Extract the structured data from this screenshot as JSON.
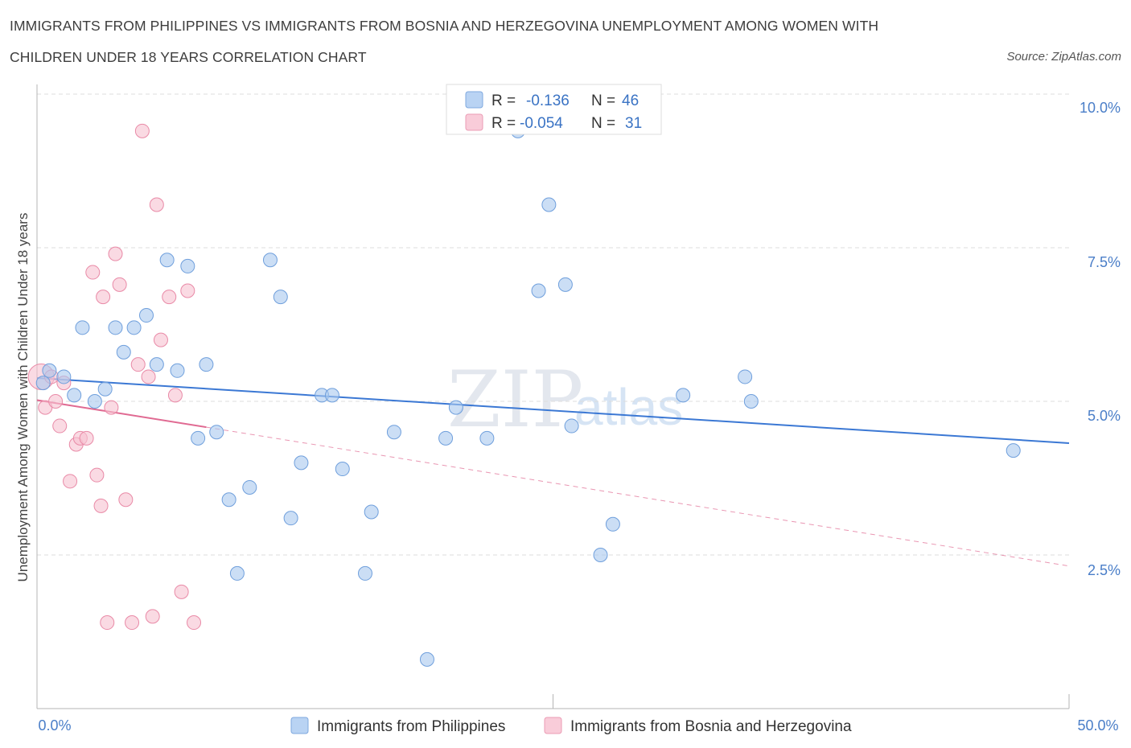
{
  "title_line1": "IMMIGRANTS FROM PHILIPPINES VS IMMIGRANTS FROM BOSNIA AND HERZEGOVINA UNEMPLOYMENT AMONG WOMEN WITH",
  "title_line2": "CHILDREN UNDER 18 YEARS CORRELATION CHART",
  "source": "Source: ZipAtlas.com",
  "watermark_zip": "ZIP",
  "watermark_atlas": "atlas",
  "chart_data": {
    "type": "scatter",
    "title": "IMMIGRANTS FROM PHILIPPINES VS IMMIGRANTS FROM BOSNIA AND HERZEGOVINA UNEMPLOYMENT AMONG WOMEN WITH CHILDREN UNDER 18 YEARS CORRELATION CHART",
    "xlabel": "",
    "ylabel": "Unemployment Among Women with Children Under 18 years",
    "xlim": [
      0,
      50
    ],
    "ylim": [
      0,
      10
    ],
    "x_tick_labels": [
      "0.0%",
      "50.0%"
    ],
    "y_ticks": [
      2.5,
      5.0,
      7.5,
      10.0
    ],
    "y_tick_labels": [
      "2.5%",
      "5.0%",
      "7.5%",
      "10.0%"
    ],
    "grid": true,
    "legend_position": "top-center",
    "series": [
      {
        "name": "Immigrants from Philippines",
        "color": "#a9c8ef",
        "edge": "#6f9fdc",
        "R": "-0.136",
        "N": "46",
        "trend": {
          "x": [
            0,
            50
          ],
          "y": [
            5.38,
            4.32
          ],
          "color": "#3b78d4"
        },
        "points": [
          [
            0.3,
            5.3
          ],
          [
            0.6,
            5.5
          ],
          [
            1.3,
            5.4
          ],
          [
            1.8,
            5.1
          ],
          [
            2.2,
            6.2
          ],
          [
            2.8,
            5.0
          ],
          [
            3.3,
            5.2
          ],
          [
            3.8,
            6.2
          ],
          [
            4.2,
            5.8
          ],
          [
            4.7,
            6.2
          ],
          [
            5.3,
            6.4
          ],
          [
            5.8,
            5.6
          ],
          [
            6.3,
            7.3
          ],
          [
            6.8,
            5.5
          ],
          [
            7.3,
            7.2
          ],
          [
            7.8,
            4.4
          ],
          [
            8.2,
            5.6
          ],
          [
            8.7,
            4.5
          ],
          [
            9.3,
            3.4
          ],
          [
            9.7,
            2.2
          ],
          [
            10.3,
            3.6
          ],
          [
            11.3,
            7.3
          ],
          [
            11.8,
            6.7
          ],
          [
            12.3,
            3.1
          ],
          [
            12.8,
            4.0
          ],
          [
            13.8,
            5.1
          ],
          [
            14.3,
            5.1
          ],
          [
            14.8,
            3.9
          ],
          [
            15.9,
            2.2
          ],
          [
            16.2,
            3.2
          ],
          [
            17.3,
            4.5
          ],
          [
            18.9,
            0.8
          ],
          [
            19.8,
            4.4
          ],
          [
            20.3,
            4.9
          ],
          [
            21.8,
            4.4
          ],
          [
            23.3,
            9.4
          ],
          [
            24.3,
            6.8
          ],
          [
            24.8,
            8.2
          ],
          [
            25.6,
            6.9
          ],
          [
            25.9,
            4.6
          ],
          [
            27.3,
            2.5
          ],
          [
            27.9,
            3.0
          ],
          [
            31.3,
            5.1
          ],
          [
            34.3,
            5.4
          ],
          [
            34.6,
            5.0
          ],
          [
            47.3,
            4.2
          ]
        ]
      },
      {
        "name": "Immigrants from Bosnia and Herzegovina",
        "color": "#f7c1d0",
        "edge": "#e98aa7",
        "R": "-0.054",
        "N": "31",
        "trend": {
          "x": [
            0,
            8.2
          ],
          "y": [
            5.02,
            4.58
          ],
          "color": "#e06a92"
        },
        "trend_extension": {
          "x": [
            8.2,
            50
          ],
          "y": [
            4.58,
            2.32
          ]
        },
        "points": [
          [
            0.2,
            5.4
          ],
          [
            0.4,
            4.9
          ],
          [
            0.7,
            5.4
          ],
          [
            0.9,
            5.0
          ],
          [
            1.1,
            4.6
          ],
          [
            1.3,
            5.3
          ],
          [
            1.6,
            3.7
          ],
          [
            1.9,
            4.3
          ],
          [
            2.1,
            4.4
          ],
          [
            2.4,
            4.4
          ],
          [
            2.7,
            7.1
          ],
          [
            2.9,
            3.8
          ],
          [
            3.1,
            3.3
          ],
          [
            3.2,
            6.7
          ],
          [
            3.4,
            1.4
          ],
          [
            3.6,
            4.9
          ],
          [
            3.8,
            7.4
          ],
          [
            4.0,
            6.9
          ],
          [
            4.3,
            3.4
          ],
          [
            4.6,
            1.4
          ],
          [
            4.9,
            5.6
          ],
          [
            5.1,
            9.4
          ],
          [
            5.4,
            5.4
          ],
          [
            5.6,
            1.5
          ],
          [
            5.8,
            8.2
          ],
          [
            6.0,
            6.0
          ],
          [
            6.4,
            6.7
          ],
          [
            6.7,
            5.1
          ],
          [
            7.0,
            1.9
          ],
          [
            7.3,
            6.8
          ],
          [
            7.6,
            1.4
          ]
        ]
      }
    ]
  }
}
